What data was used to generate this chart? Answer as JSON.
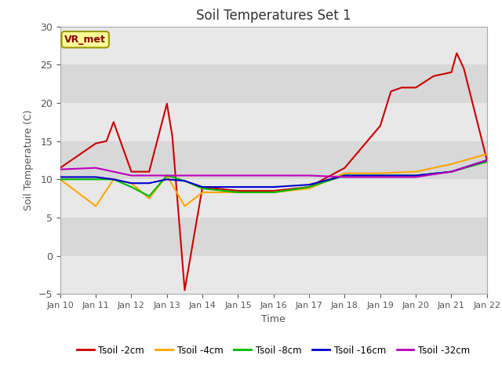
{
  "title": "Soil Temperatures Set 1",
  "xlabel": "Time",
  "ylabel": "Soil Temperature (C)",
  "figure_bg": "#ffffff",
  "plot_bg": "#d8d8d8",
  "band_color": "#e8e8e8",
  "ylim": [
    -5,
    30
  ],
  "xlim": [
    0,
    12
  ],
  "x_labels": [
    "Jan 10",
    "Jan 11",
    "Jan 12",
    "Jan 13",
    "Jan 14",
    "Jan 15",
    "Jan 16",
    "Jan 17",
    "Jan 18",
    "Jan 19",
    "Jan 20",
    "Jan 21",
    "Jan 22"
  ],
  "yticks": [
    -5,
    0,
    5,
    10,
    15,
    20,
    25,
    30
  ],
  "annotation_label": "VR_met",
  "series": {
    "Tsoil -2cm": {
      "color": "#cc0000",
      "x": [
        0,
        1,
        1.3,
        1.5,
        2,
        2.5,
        3,
        3.15,
        3.5,
        4,
        5,
        6,
        7,
        8,
        9,
        9.3,
        9.6,
        10,
        10.5,
        11,
        11.15,
        11.35,
        12
      ],
      "y": [
        11.5,
        14.7,
        15.0,
        17.5,
        11.0,
        11.0,
        19.9,
        15.7,
        -4.5,
        9.0,
        8.5,
        8.5,
        9.0,
        11.5,
        17.0,
        21.5,
        22.0,
        22.0,
        23.5,
        24.0,
        26.5,
        24.5,
        12.5
      ]
    },
    "Tsoil -4cm": {
      "color": "#ffa500",
      "x": [
        0,
        1,
        1.5,
        2,
        2.5,
        3,
        3.5,
        4,
        5,
        6,
        7,
        8,
        9,
        10,
        11,
        12
      ],
      "y": [
        10.0,
        6.5,
        10.0,
        9.5,
        7.5,
        10.5,
        6.5,
        8.3,
        8.3,
        8.3,
        8.8,
        10.8,
        10.8,
        11.0,
        12.0,
        13.3
      ]
    },
    "Tsoil -8cm": {
      "color": "#00bb00",
      "x": [
        0,
        1,
        1.5,
        2,
        2.5,
        3,
        3.5,
        4,
        5,
        6,
        7,
        8,
        9,
        10,
        11,
        12
      ],
      "y": [
        10.0,
        10.0,
        10.0,
        9.0,
        7.8,
        10.5,
        9.8,
        8.8,
        8.3,
        8.3,
        9.0,
        10.5,
        10.5,
        10.5,
        11.0,
        12.3
      ]
    },
    "Tsoil -16cm": {
      "color": "#0000cc",
      "x": [
        0,
        1,
        1.5,
        2,
        2.5,
        3,
        3.5,
        4,
        5,
        6,
        7,
        8,
        9,
        10,
        11,
        12
      ],
      "y": [
        10.3,
        10.3,
        10.0,
        9.5,
        9.5,
        10.0,
        9.8,
        9.0,
        9.0,
        9.0,
        9.3,
        10.5,
        10.5,
        10.5,
        11.0,
        12.5
      ]
    },
    "Tsoil -32cm": {
      "color": "#bb00bb",
      "x": [
        0,
        1,
        1.5,
        2,
        2.5,
        3,
        3.5,
        4,
        5,
        6,
        7,
        8,
        9,
        10,
        11,
        12
      ],
      "y": [
        11.3,
        11.5,
        11.0,
        10.5,
        10.5,
        10.5,
        10.5,
        10.5,
        10.5,
        10.5,
        10.5,
        10.3,
        10.3,
        10.3,
        11.0,
        12.5
      ]
    }
  },
  "legend": [
    "Tsoil -2cm",
    "Tsoil -4cm",
    "Tsoil -8cm",
    "Tsoil -16cm",
    "Tsoil -32cm"
  ]
}
